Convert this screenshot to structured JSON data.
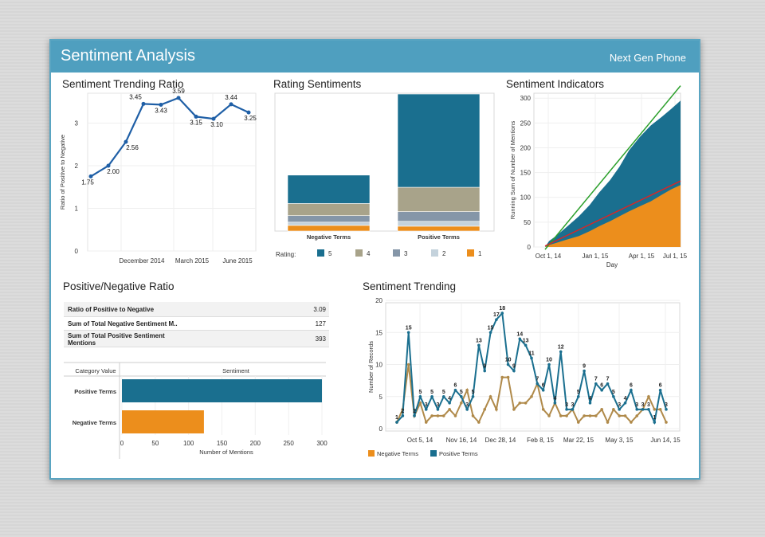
{
  "header": {
    "title": "Sentiment Analysis",
    "subtitle": "Next Gen Phone"
  },
  "colors": {
    "teal": "#1a6f8f",
    "orange": "#ec8e1c",
    "tan": "#a8a38a",
    "slate": "#8596a8",
    "light": "#c4d2dc",
    "trend_blue": "#1f5fa6",
    "header": "#4f9fbf",
    "green_line": "#2ca02c",
    "red_line": "#d62728",
    "neg_line": "#b08a4a"
  },
  "panels": {
    "ratio_title": "Sentiment Trending Ratio",
    "rating_title": "Rating Sentiments",
    "indicators_title": "Sentiment Indicators",
    "posneg_title": "Positive/Negative Ratio",
    "trending_title": "Sentiment Trending"
  },
  "summary_table": [
    {
      "label": "Ratio of Positive to Negative",
      "value": "3.09"
    },
    {
      "label": "Sum of Total Negative Sentiment M..",
      "value": "127"
    },
    {
      "label": "Sum of Total Positive Sentiment Mentions",
      "value": "393"
    }
  ],
  "chart_data": [
    {
      "type": "line",
      "ylabel": "Ratio of Positive to Negative",
      "ylim": [
        0,
        3.7
      ],
      "y_ticks": [
        "0",
        "1",
        "2",
        "3"
      ],
      "x_ticks": [
        "December 2014",
        "March 2015",
        "June 2015"
      ],
      "values": [
        1.75,
        2.0,
        2.56,
        3.45,
        3.43,
        3.59,
        3.15,
        3.1,
        3.44,
        3.25
      ],
      "labels": [
        "1.75",
        "2.00",
        "2.56",
        "3.45",
        "3.43",
        "3.59",
        "3.15",
        "3.10",
        "3.44",
        "3.25"
      ]
    },
    {
      "type": "bar",
      "categories": [
        "Negative Terms",
        "Positive Terms"
      ],
      "legend_title": "Rating:",
      "series": [
        {
          "name": "5",
          "values": [
            35,
            115
          ]
        },
        {
          "name": "4",
          "values": [
            15,
            30
          ]
        },
        {
          "name": "3",
          "values": [
            8,
            12
          ]
        },
        {
          "name": "2",
          "values": [
            4,
            6
          ]
        },
        {
          "name": "1",
          "values": [
            7,
            6
          ]
        }
      ],
      "ylim": [
        0,
        170
      ]
    },
    {
      "type": "area",
      "xlabel": "Day",
      "ylabel": "Running Sum of Number of Mentions",
      "ylim": [
        0,
        310
      ],
      "y_ticks": [
        "0",
        "50",
        "100",
        "150",
        "200",
        "250",
        "300"
      ],
      "x_ticks": [
        "Oct 1, 14",
        "Jan 1, 15",
        "Apr 1, 15",
        "Jul 1, 15"
      ],
      "x": [
        0,
        0.03,
        0.08,
        0.15,
        0.25,
        0.33,
        0.4,
        0.48,
        0.55,
        0.62,
        0.7,
        0.78,
        0.86,
        0.93,
        1.0
      ],
      "series": [
        {
          "name": "Positive Terms",
          "values": [
            0,
            12,
            22,
            38,
            62,
            85,
            110,
            135,
            162,
            195,
            222,
            245,
            262,
            278,
            295
          ]
        },
        {
          "name": "Negative Terms",
          "values": [
            0,
            4,
            8,
            14,
            22,
            32,
            42,
            52,
            62,
            72,
            82,
            92,
            105,
            116,
            125
          ]
        }
      ],
      "trend_lines": [
        [
          0,
          -5,
          1,
          325
        ],
        [
          0,
          2,
          1,
          133
        ]
      ]
    },
    {
      "type": "bar",
      "orientation": "horizontal",
      "header_left": "Category Value",
      "header_right": "Sentiment",
      "categories": [
        "Positive Terms",
        "Negative Terms"
      ],
      "values": [
        300,
        123
      ],
      "xlabel": "Number of Mentions",
      "x_ticks": [
        "0",
        "50",
        "100",
        "150",
        "200",
        "250",
        "300"
      ],
      "xlim": [
        0,
        300
      ]
    },
    {
      "type": "line",
      "ylabel": "Number of Records",
      "ylim": [
        0,
        20
      ],
      "y_ticks": [
        "0",
        "5",
        "10",
        "15",
        "20"
      ],
      "x_ticks": [
        "Oct 5, 14",
        "Nov 16, 14",
        "Dec 28, 14",
        "Feb 8, 15",
        "Mar 22, 15",
        "May 3, 15",
        "Jun 14, 15"
      ],
      "series": [
        {
          "name": "Negative Terms",
          "values": [
            1,
            3,
            10,
            2,
            4,
            1,
            2,
            2,
            2,
            3,
            2,
            4,
            6,
            2,
            1,
            3,
            5,
            3,
            8,
            8,
            3,
            4,
            4,
            5,
            7,
            3,
            2,
            4,
            2,
            2,
            3,
            1,
            2,
            2,
            2,
            3,
            1,
            3,
            2,
            2,
            1,
            2,
            3,
            5,
            3,
            3,
            1
          ]
        },
        {
          "name": "Positive Terms",
          "values": [
            1,
            2,
            15,
            2,
            5,
            3,
            5,
            3,
            5,
            4,
            6,
            5,
            3,
            5,
            13,
            9,
            15,
            17,
            18,
            10,
            9,
            14,
            13,
            11,
            7,
            6,
            10,
            4,
            12,
            3,
            3,
            5,
            9,
            4,
            7,
            6,
            7,
            5,
            3,
            4,
            6,
            3,
            3,
            3,
            1,
            6,
            3
          ]
        }
      ],
      "labels": {
        "Positive Terms": [
          "1",
          "2",
          "15",
          "2",
          "5",
          "3",
          "5",
          "3",
          "5",
          "4",
          "6",
          "5",
          "3",
          "5",
          "13",
          "9",
          "15",
          "17",
          "18",
          "10",
          "9",
          "14",
          "13",
          "11",
          "7",
          "6",
          "10",
          "4",
          "12",
          "3",
          "3",
          "5",
          "9",
          "4",
          "7",
          "6",
          "7",
          "5",
          "3",
          "4",
          "6",
          "3",
          "3",
          "3",
          "1",
          "6",
          "3"
        ]
      }
    }
  ]
}
